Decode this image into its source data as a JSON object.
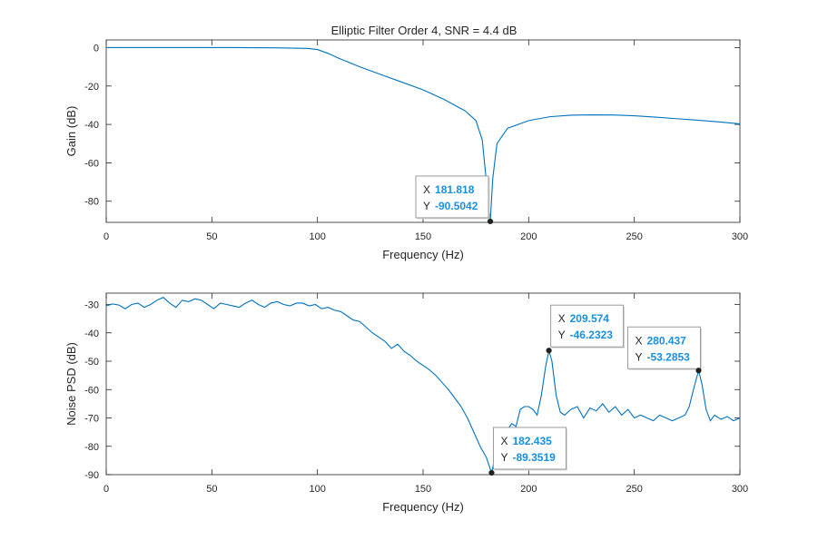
{
  "figure": {
    "title": "Elliptic Filter Order 4, SNR = 4.4 dB"
  },
  "chart_data": [
    {
      "type": "line",
      "name": "gain-plot",
      "title": "Elliptic Filter Order 4, SNR = 4.4 dB",
      "xlabel": "Frequency (Hz)",
      "ylabel": "Gain (dB)",
      "xlim": [
        0,
        300
      ],
      "ylim": [
        -91,
        4
      ],
      "xticks": [
        0,
        50,
        100,
        150,
        200,
        250,
        300
      ],
      "yticks": [
        0,
        -20,
        -40,
        -60,
        -80
      ],
      "color": "#0072bd",
      "series": [
        {
          "x": [
            0,
            20,
            40,
            60,
            80,
            95,
            100,
            105,
            110,
            120,
            130,
            140,
            150,
            160,
            170,
            175,
            178,
            180,
            181.818,
            183,
            185,
            190,
            200,
            210,
            220,
            230,
            240,
            250,
            260,
            270,
            280,
            290,
            300
          ],
          "y": [
            0,
            0,
            0,
            0,
            -0.1,
            -0.4,
            -1,
            -3,
            -5.5,
            -10,
            -14,
            -18,
            -22,
            -27,
            -33,
            -38,
            -48,
            -70,
            -90.5042,
            -68,
            -50,
            -42,
            -38,
            -36,
            -35.2,
            -35,
            -35.1,
            -35.5,
            -36.2,
            -37,
            -37.8,
            -38.7,
            -39.7
          ]
        }
      ],
      "datatips": [
        {
          "x_label": "X",
          "x_value": "181.818",
          "y_label": "Y",
          "y_value": "-90.5042",
          "x": 181.818,
          "y": -90.5042,
          "placement": "left"
        }
      ]
    },
    {
      "type": "line",
      "name": "noise-psd-plot",
      "xlabel": "Frequency (Hz)",
      "ylabel": "Noise PSD (dB)",
      "xlim": [
        0,
        300
      ],
      "ylim": [
        -90,
        -26
      ],
      "xticks": [
        0,
        50,
        100,
        150,
        200,
        250,
        300
      ],
      "yticks": [
        -30,
        -40,
        -50,
        -60,
        -70,
        -80,
        -90
      ],
      "color": "#0072bd",
      "series": [
        {
          "x": [
            0,
            3,
            6,
            9,
            12,
            15,
            18,
            21,
            24,
            27,
            30,
            33,
            36,
            39,
            42,
            45,
            48,
            51,
            54,
            57,
            60,
            63,
            66,
            69,
            72,
            75,
            78,
            81,
            84,
            87,
            90,
            93,
            96,
            99,
            102,
            105,
            108,
            111,
            114,
            117,
            120,
            123,
            126,
            129,
            132,
            135,
            138,
            141,
            144,
            147,
            150,
            153,
            156,
            159,
            162,
            165,
            168,
            171,
            174,
            177,
            180,
            182.435,
            184,
            186,
            188,
            190,
            192,
            194,
            196,
            198,
            200,
            202,
            204,
            206,
            208,
            209.574,
            211,
            213,
            215,
            217,
            220,
            223,
            226,
            229,
            232,
            235,
            238,
            241,
            244,
            247,
            250,
            253,
            256,
            259,
            262,
            265,
            268,
            271,
            274,
            276,
            278,
            280.437,
            282,
            284,
            286,
            288,
            291,
            294,
            297,
            300
          ],
          "y": [
            -30.5,
            -29.8,
            -30.2,
            -31.5,
            -30,
            -29.5,
            -31,
            -30,
            -28.5,
            -27.5,
            -29.5,
            -31,
            -28.5,
            -29,
            -28,
            -28.5,
            -30,
            -31.5,
            -29.5,
            -30,
            -30.5,
            -31,
            -29.5,
            -28.5,
            -30,
            -31,
            -29.5,
            -29,
            -30,
            -30.5,
            -29.5,
            -29.5,
            -30.5,
            -30,
            -31.5,
            -31,
            -32,
            -32.5,
            -34,
            -35.5,
            -36,
            -38,
            -40,
            -41.5,
            -43,
            -45.5,
            -44,
            -46.5,
            -48,
            -50,
            -51.5,
            -53,
            -55,
            -57.5,
            -60,
            -63,
            -66,
            -70,
            -75,
            -80,
            -84,
            -89.3519,
            -84,
            -80,
            -76,
            -74,
            -72,
            -73,
            -67,
            -66,
            -66,
            -67,
            -69,
            -62,
            -52,
            -46.2323,
            -50,
            -62,
            -68,
            -69,
            -67,
            -66,
            -70,
            -66.5,
            -67.5,
            -65,
            -68,
            -66,
            -69,
            -67,
            -70,
            -69,
            -70,
            -71,
            -69,
            -70,
            -71,
            -70,
            -69,
            -66,
            -60,
            -53.2853,
            -58,
            -67,
            -71,
            -69,
            -70.5,
            -69.5,
            -71,
            -70
          ]
        }
      ],
      "datatips": [
        {
          "x_label": "X",
          "x_value": "182.435",
          "y_label": "Y",
          "y_value": "-89.3519",
          "x": 182.435,
          "y": -89.3519,
          "placement": "above-right"
        },
        {
          "x_label": "X",
          "x_value": "209.574",
          "y_label": "Y",
          "y_value": "-46.2323",
          "x": 209.574,
          "y": -46.2323,
          "placement": "above-right"
        },
        {
          "x_label": "X",
          "x_value": "280.437",
          "y_label": "Y",
          "y_value": "-53.2853",
          "x": 280.437,
          "y": -53.2853,
          "placement": "above-left"
        }
      ]
    }
  ]
}
